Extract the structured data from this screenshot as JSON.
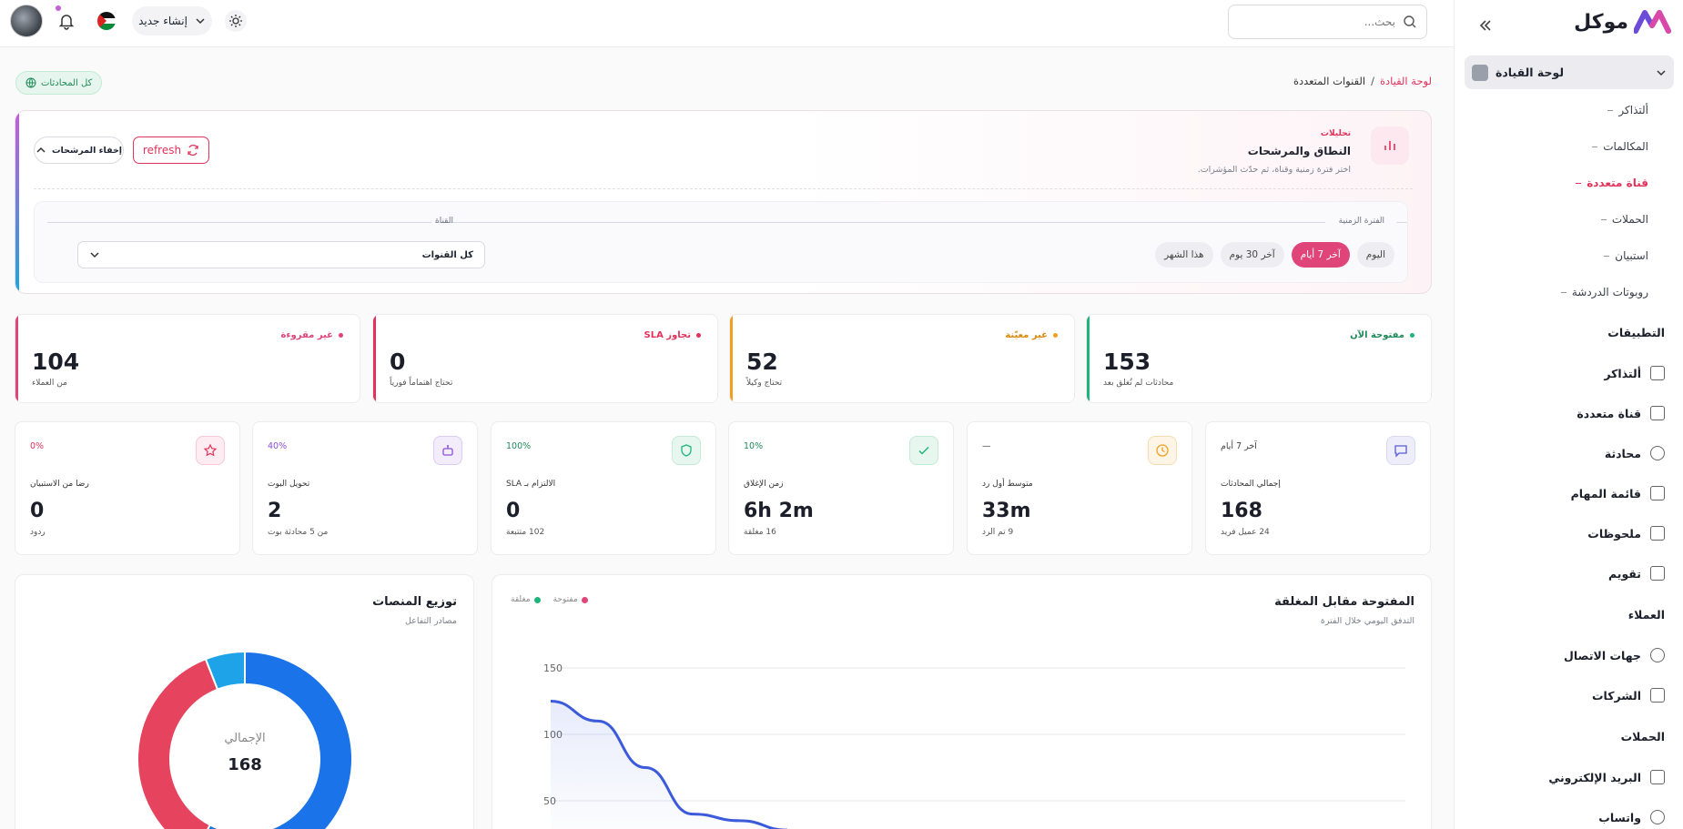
{
  "brand": {
    "name": "موكل"
  },
  "topbar": {
    "search_placeholder": "بحث...",
    "create_label": "إنشاء جديد"
  },
  "sidebar": {
    "dashboard_label": "لوحة القيادة",
    "sub_items": [
      "ألتذاكر",
      "المكالمات",
      "قناة متعددة",
      "الحملات",
      "استبيان",
      "روبوتات الدردشة"
    ],
    "sections": {
      "apps": "التطبيقات",
      "customers": "العملاء",
      "campaigns": "الحملات"
    },
    "apps_items": [
      "ألتذاكر",
      "قناة متعددة",
      "محادثة",
      "قائمة المهام",
      "ملحوظات",
      "تقويم"
    ],
    "customer_items": [
      "جهات الاتصال",
      "الشركات"
    ],
    "campaign_items": [
      "البريد الإلكتروني",
      "واتساب"
    ]
  },
  "breadcrumb": {
    "root": "لوحة القيادة",
    "sep": "/",
    "current": "القنوات المتعددة"
  },
  "all_conversations": "كل المحادثات",
  "filters": {
    "kicker": "تحليلات",
    "title": "النطاق والمرشحات",
    "subtitle": "اختر فترة زمنية وقناة، ثم حدّث المؤشرات.",
    "refresh_label": "refresh",
    "hide_label": "إخفاء المرشحات",
    "period_label": "الفترة الزمنية",
    "channel_label": "القناة",
    "periods": [
      "اليوم",
      "آخر 7 أيام",
      "آخر 30 يوم",
      "هذا الشهر"
    ],
    "selected_period": "آخر 7 أيام",
    "channel_value": "كل القنوات"
  },
  "stats": [
    {
      "tag": "مفتوحة الآن",
      "value": "153",
      "desc": "محادثات لم تُغلق بعد",
      "color": "#1fb57a"
    },
    {
      "tag": "غير معيّنة",
      "value": "52",
      "desc": "تحتاج وكيلاً",
      "color": "#f0a020"
    },
    {
      "tag": "تجاوز SLA",
      "value": "0",
      "desc": "تحتاج اهتماماً فورياً",
      "color": "#e0325a"
    },
    {
      "tag": "غير مقروءة",
      "value": "104",
      "desc": "من العملاء",
      "color": "#e0457a"
    }
  ],
  "kpis": [
    {
      "badge": "آخر 7 أيام",
      "title": "إجمالي المحادثات",
      "value": "168",
      "sub": "24 عميل فريد",
      "icon": "chat-icon",
      "color": "#5b5bd6"
    },
    {
      "badge": "—",
      "title": "متوسط أول رد",
      "value": "33m",
      "sub": "9 تم الرد",
      "icon": "clock-icon",
      "color": "#f0a020"
    },
    {
      "badge": "10%",
      "title": "زمن الإغلاق",
      "value": "6h 2m",
      "sub": "16 مغلقة",
      "icon": "check-icon",
      "color": "#1fb57a"
    },
    {
      "badge": "100%",
      "title": "الالتزام بـ SLA",
      "value": "0",
      "sub": "102 متتبعة",
      "icon": "shield-icon",
      "color": "#1fb57a"
    },
    {
      "badge": "40%",
      "title": "تحويل البوت",
      "value": "2",
      "sub": "من 5 محادثة بوت",
      "icon": "bot-icon",
      "color": "#8a4fd6"
    },
    {
      "badge": "0%",
      "title": "رضا من الاستبيان",
      "value": "0",
      "sub": "ردود",
      "icon": "star-icon",
      "color": "#e0325a"
    }
  ],
  "line_chart": {
    "title": "المفتوحة مقابل المغلقة",
    "subtitle": "التدفق اليومي خلال الفترة",
    "legend_open": "مفتوحة",
    "legend_closed": "مغلقة",
    "open_color": "#e0457a",
    "closed_color": "#1fb57a"
  },
  "donut_chart": {
    "title": "توزيع المنصات",
    "subtitle": "مصادر التفاعل",
    "center_label": "الإجمالي",
    "center_value": "168"
  },
  "chart_data": [
    {
      "type": "line",
      "title": "المفتوحة مقابل المغلقة",
      "y_ticks": [
        50,
        100,
        150
      ],
      "series": [
        {
          "name": "مفتوحة",
          "color": "#3b5bdb",
          "values": [
            125,
            110,
            75,
            40,
            35,
            28
          ]
        }
      ]
    },
    {
      "type": "pie",
      "title": "توزيع المنصات",
      "values": [
        97,
        61,
        10
      ],
      "colors": [
        "#1a73e8",
        "#e5435e",
        "#1fa3e8"
      ]
    }
  ]
}
